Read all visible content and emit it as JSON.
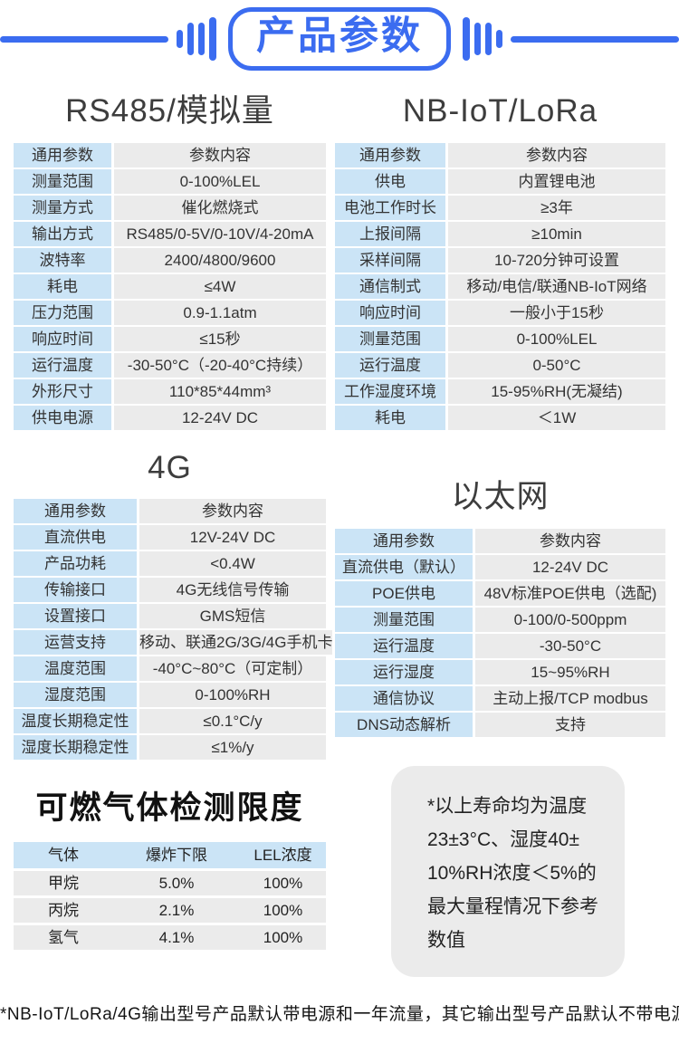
{
  "colors": {
    "accent": "#3B6CF0",
    "label_bg": "#CBE4F6",
    "value_bg": "#EBEBEB",
    "note_bg": "#EBEBEB"
  },
  "banner": {
    "title": "产品参数"
  },
  "tables": {
    "rs485": {
      "title": "RS485/模拟量",
      "rows": [
        {
          "label": "通用参数",
          "value": "参数内容"
        },
        {
          "label": "测量范围",
          "value": "0-100%LEL"
        },
        {
          "label": "测量方式",
          "value": "催化燃烧式"
        },
        {
          "label": "输出方式",
          "value": "RS485/0-5V/0-10V/4-20mA"
        },
        {
          "label": "波特率",
          "value": "2400/4800/9600"
        },
        {
          "label": "耗电",
          "value": "≤4W"
        },
        {
          "label": "压力范围",
          "value": "0.9-1.1atm"
        },
        {
          "label": "响应时间",
          "value": "≤15秒"
        },
        {
          "label": "运行温度",
          "value": "-30-50°C（-20-40°C持续）"
        },
        {
          "label": "外形尺寸",
          "value": "110*85*44mm³"
        },
        {
          "label": "供电电源",
          "value": "12-24V DC"
        }
      ]
    },
    "nbiot": {
      "title": "NB-IoT/LoRa",
      "rows": [
        {
          "label": "通用参数",
          "value": "参数内容"
        },
        {
          "label": "供电",
          "value": "内置锂电池"
        },
        {
          "label": "电池工作时长",
          "value": "≥3年"
        },
        {
          "label": "上报间隔",
          "value": "≥10min"
        },
        {
          "label": "采样间隔",
          "value": "10-720分钟可设置"
        },
        {
          "label": "通信制式",
          "value": "移动/电信/联通NB-IoT网络"
        },
        {
          "label": "响应时间",
          "value": "一般小于15秒"
        },
        {
          "label": "测量范围",
          "value": "0-100%LEL"
        },
        {
          "label": "运行温度",
          "value": "0-50°C"
        },
        {
          "label": "工作湿度环境",
          "value": "15-95%RH(无凝结)"
        },
        {
          "label": "耗电",
          "value": "＜1W"
        }
      ]
    },
    "g4": {
      "title": "4G",
      "rows": [
        {
          "label": "通用参数",
          "value": "参数内容"
        },
        {
          "label": "直流供电",
          "value": "12V-24V DC"
        },
        {
          "label": "产品功耗",
          "value": "<0.4W"
        },
        {
          "label": "传输接口",
          "value": "4G无线信号传输"
        },
        {
          "label": "设置接口",
          "value": "GMS短信"
        },
        {
          "label": "运营支持",
          "value": "移动、联通2G/3G/4G手机卡"
        },
        {
          "label": "温度范围",
          "value": "-40°C~80°C（可定制）"
        },
        {
          "label": "湿度范围",
          "value": "0-100%RH"
        },
        {
          "label": "温度长期稳定性",
          "value": "≤0.1°C/y"
        },
        {
          "label": "湿度长期稳定性",
          "value": "≤1%/y"
        }
      ]
    },
    "eth": {
      "title": "以太网",
      "rows": [
        {
          "label": "通用参数",
          "value": "参数内容"
        },
        {
          "label": "直流供电（默认）",
          "value": "12-24V DC"
        },
        {
          "label": "POE供电",
          "value": "48V标准POE供电（选配)"
        },
        {
          "label": "测量范围",
          "value": "0-100/0-500ppm"
        },
        {
          "label": "运行温度",
          "value": "-30-50°C"
        },
        {
          "label": "运行湿度",
          "value": "15~95%RH"
        },
        {
          "label": "通信协议",
          "value": "主动上报/TCP modbus"
        },
        {
          "label": "DNS动态解析",
          "value": "支持"
        }
      ]
    },
    "gas": {
      "title": "可燃气体检测限度",
      "columns": [
        "气体",
        "爆炸下限",
        "LEL浓度"
      ],
      "rows": [
        [
          "甲烷",
          "5.0%",
          "100%"
        ],
        [
          "丙烷",
          "2.1%",
          "100%"
        ],
        [
          "氢气",
          "4.1%",
          "100%"
        ]
      ]
    }
  },
  "note_box": {
    "lines": [
      "*以上寿命均为温度",
      "23±3°C、湿度40±",
      "10%RH浓度＜5%的",
      "最大量程情况下参考",
      "数值"
    ]
  },
  "footer_note": "*NB-IoT/LoRa/4G输出型号产品默认带电源和一年流量，其它输出型号产品默认不带电源"
}
